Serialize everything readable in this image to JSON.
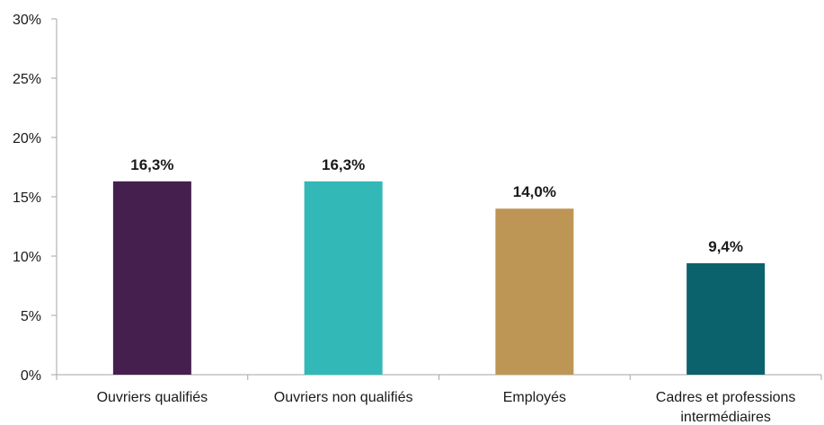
{
  "chart_data": {
    "type": "bar",
    "categories": [
      [
        "Ouvriers qualifiés"
      ],
      [
        "Ouvriers non qualifiés"
      ],
      [
        "Employés"
      ],
      [
        "Cadres et professions",
        "intermédiaires"
      ]
    ],
    "values": [
      16.3,
      16.3,
      14.0,
      9.4
    ],
    "value_labels": [
      "16,3%",
      "16,3%",
      "14,0%",
      "9,4%"
    ],
    "colors": [
      "#45204f",
      "#33b8b8",
      "#bd9655",
      "#0b626c"
    ],
    "yticks": [
      {
        "value": 0,
        "label": "0%"
      },
      {
        "value": 5,
        "label": "5%"
      },
      {
        "value": 10,
        "label": "10%"
      },
      {
        "value": 15,
        "label": "15%"
      },
      {
        "value": 20,
        "label": "20%"
      },
      {
        "value": 25,
        "label": "25%"
      },
      {
        "value": 30,
        "label": "30%"
      }
    ],
    "ylim": [
      0,
      30
    ],
    "grid": false,
    "title": "",
    "xlabel": "",
    "ylabel": ""
  }
}
